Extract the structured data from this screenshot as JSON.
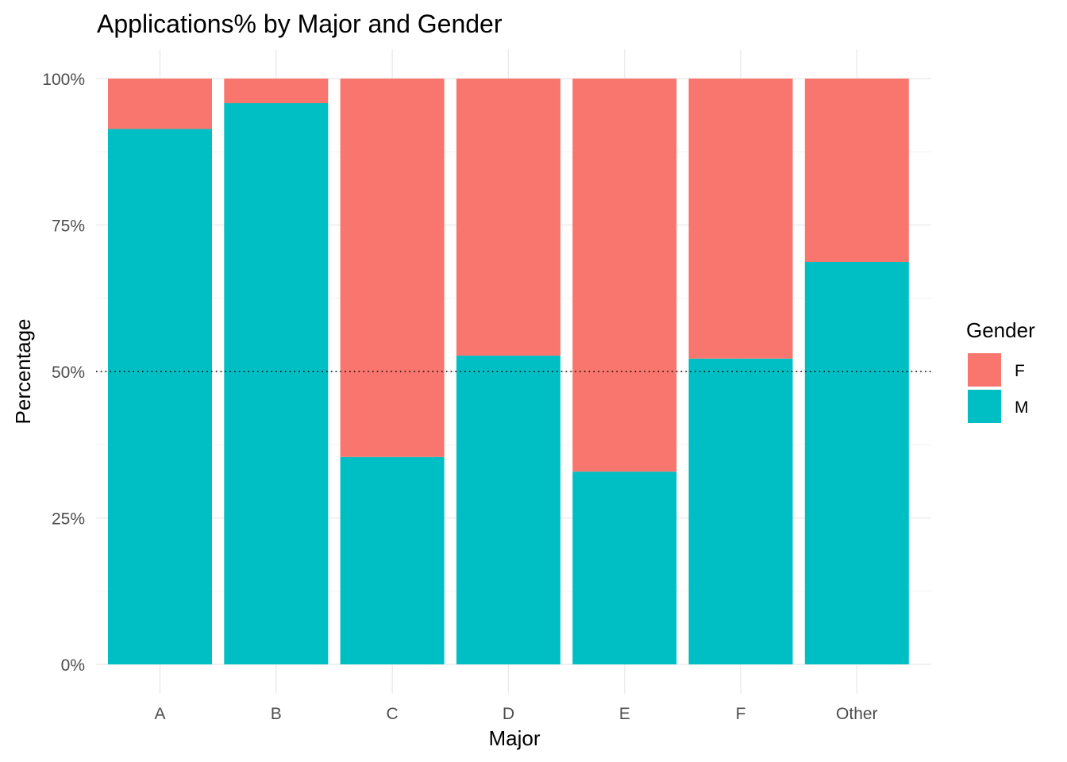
{
  "chart_data": {
    "type": "bar",
    "stacked": true,
    "title": "Applications% by Major and Gender",
    "xlabel": "Major",
    "ylabel": "Percentage",
    "categories": [
      "A",
      "B",
      "C",
      "D",
      "E",
      "F",
      "Other"
    ],
    "series": [
      {
        "name": "F",
        "color": "#F8766D",
        "values": [
          8.6,
          4.2,
          64.6,
          47.3,
          67.1,
          47.8,
          31.3
        ]
      },
      {
        "name": "M",
        "color": "#00BFC4",
        "values": [
          91.4,
          95.8,
          35.4,
          52.7,
          32.9,
          52.2,
          68.7
        ]
      }
    ],
    "stack_order_bottom_to_top": [
      "M",
      "F"
    ],
    "ylim": [
      0,
      100
    ],
    "yticks": [
      0,
      25,
      50,
      75,
      100
    ],
    "ytick_labels": [
      "0%",
      "25%",
      "50%",
      "75%",
      "100%"
    ],
    "reference_line": {
      "y": 50,
      "style": "dotted",
      "color": "#000000"
    },
    "legend": {
      "title": "Gender",
      "position": "right",
      "entries": [
        "F",
        "M"
      ]
    },
    "grid": true
  }
}
